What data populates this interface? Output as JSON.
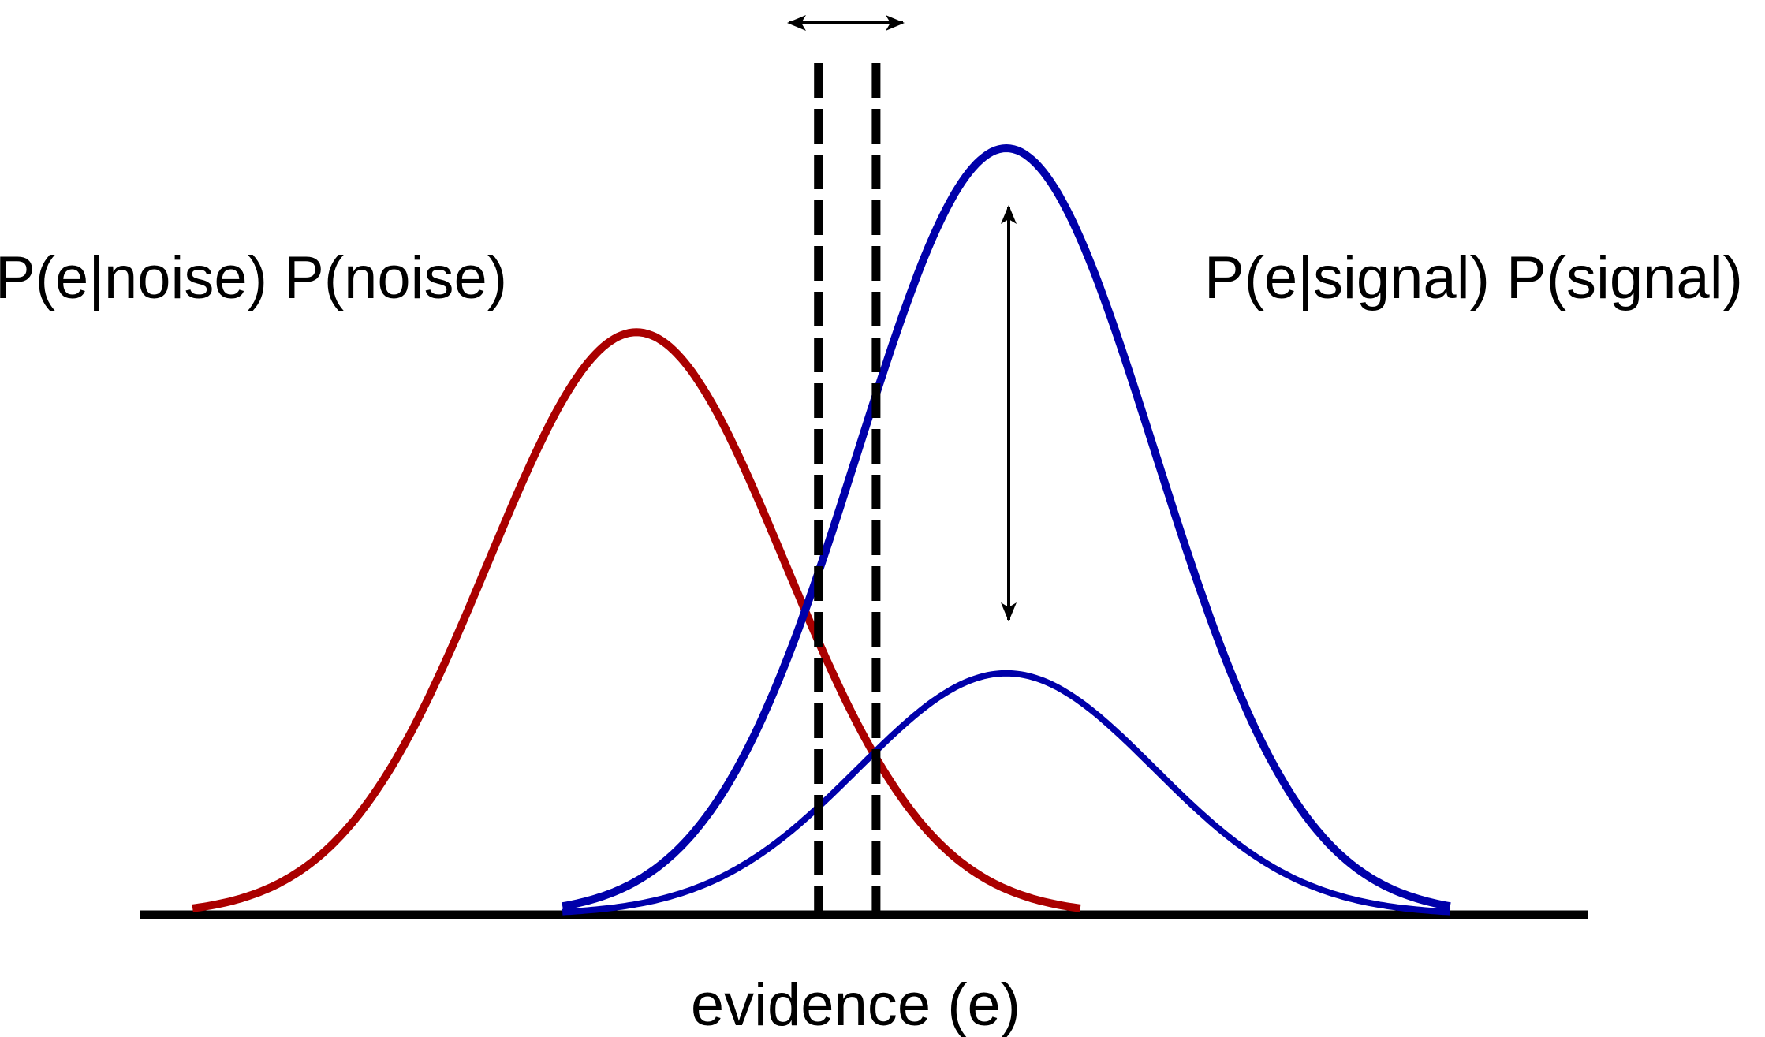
{
  "labels": {
    "noise": "P(e|noise) P(noise)",
    "signal": "P(e|signal) P(signal)",
    "xaxis": "evidence (e)"
  },
  "colors": {
    "noise": "#aa0000",
    "signal": "#0000aa",
    "axis": "#000000"
  },
  "curves": {
    "noise": {
      "mean": 0,
      "sd": 1,
      "peak": 0.76,
      "range": [
        -3,
        3
      ]
    },
    "signal_strong": {
      "mean": 2.5,
      "sd": 1,
      "peak": 1.0,
      "range": [
        -0.5,
        5.5
      ]
    },
    "signal_weak": {
      "mean": 2.5,
      "sd": 1,
      "peak": 0.315,
      "range": [
        -0.5,
        5.5
      ]
    }
  },
  "criteria": [
    1.23,
    1.62
  ],
  "indicators": {
    "criterion_shift": "horizontal double arrow between criteria",
    "prior_change": "vertical double arrow at signal peak"
  }
}
